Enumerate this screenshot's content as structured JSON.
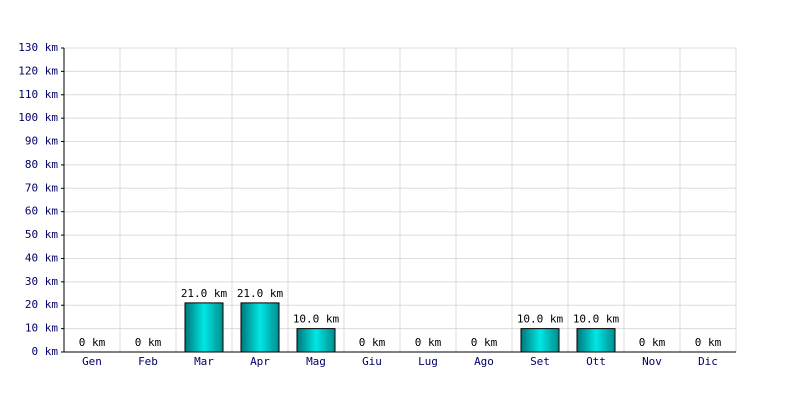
{
  "chart_data": {
    "type": "bar",
    "categories": [
      "Gen",
      "Feb",
      "Mar",
      "Apr",
      "Mag",
      "Giu",
      "Lug",
      "Ago",
      "Set",
      "Ott",
      "Nov",
      "Dic"
    ],
    "values": [
      0,
      0,
      21,
      21,
      10,
      0,
      0,
      0,
      10,
      10,
      0,
      0
    ],
    "value_labels": [
      "0 km",
      "0 km",
      "21.0 km",
      "21.0 km",
      "10.0 km",
      "0 km",
      "0 km",
      "0 km",
      "10.0 km",
      "10.0 km",
      "0 km",
      "0 km"
    ],
    "color": "#00c8c8",
    "ylim": [
      0,
      130
    ],
    "yticks": [
      {
        "value": 0,
        "label": "0 km"
      },
      {
        "value": 10,
        "label": "10 km"
      },
      {
        "value": 20,
        "label": "20 km"
      },
      {
        "value": 30,
        "label": "30 km"
      },
      {
        "value": 40,
        "label": "40 km"
      },
      {
        "value": 50,
        "label": "50 km"
      },
      {
        "value": 60,
        "label": "60 km"
      },
      {
        "value": 70,
        "label": "70 km"
      },
      {
        "value": 80,
        "label": "80 km"
      },
      {
        "value": 90,
        "label": "90 km"
      },
      {
        "value": 100,
        "label": "100 km"
      },
      {
        "value": 110,
        "label": "110 km"
      },
      {
        "value": 120,
        "label": "120 km"
      },
      {
        "value": 130,
        "label": "130 km"
      }
    ],
    "grid": true
  }
}
